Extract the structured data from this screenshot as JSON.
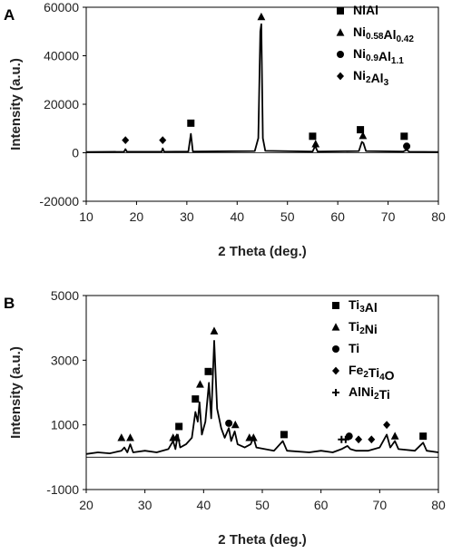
{
  "chart_data": [
    {
      "type": "line",
      "panel_label": "A",
      "xlabel": "2 Theta (deg.)",
      "ylabel": "Intensity (a.u.)",
      "xlim": [
        10,
        80
      ],
      "ylim": [
        -20000,
        60000
      ],
      "x_ticks": [
        10,
        20,
        30,
        40,
        50,
        60,
        70,
        80
      ],
      "y_ticks": [
        -20000,
        0,
        20000,
        40000,
        60000
      ],
      "legend_position": "top-right",
      "legend": [
        {
          "marker": "square",
          "label": "NiAl"
        },
        {
          "marker": "triangle",
          "label": "Ni",
          "sub1": "0.58",
          "mid": "Al",
          "sub2": "0.42"
        },
        {
          "marker": "circle",
          "label": "Ni",
          "sub1": "0.9",
          "mid": "Al",
          "sub2": "1.1"
        },
        {
          "marker": "diamond",
          "label": "Ni",
          "sub1": "2",
          "mid": "Al",
          "sub2": "3"
        }
      ],
      "series": [
        {
          "values": [
            [
              10,
              300
            ],
            [
              17.5,
              400
            ],
            [
              17.8,
              1500
            ],
            [
              18.1,
              400
            ],
            [
              25,
              400
            ],
            [
              25.2,
              1800
            ],
            [
              25.5,
              400
            ],
            [
              30.3,
              500
            ],
            [
              30.8,
              7800
            ],
            [
              31.2,
              500
            ],
            [
              43.5,
              700
            ],
            [
              44.2,
              6000
            ],
            [
              44.6,
              50000
            ],
            [
              44.8,
              53000
            ],
            [
              45.1,
              6000
            ],
            [
              45.6,
              800
            ],
            [
              55,
              500
            ],
            [
              55.5,
              2800
            ],
            [
              56,
              500
            ],
            [
              64.2,
              700
            ],
            [
              64.8,
              4500
            ],
            [
              65.1,
              4000
            ],
            [
              65.6,
              700
            ],
            [
              73,
              500
            ],
            [
              73.7,
              1200
            ],
            [
              74.2,
              400
            ],
            [
              80,
              300
            ]
          ]
        }
      ],
      "markers": [
        {
          "type": "diamond",
          "x": 17.8,
          "y": 5200
        },
        {
          "type": "diamond",
          "x": 25.2,
          "y": 5200
        },
        {
          "type": "square",
          "x": 30.8,
          "y": 12200
        },
        {
          "type": "triangle",
          "x": 44.8,
          "y": 56000
        },
        {
          "type": "square",
          "x": 55.0,
          "y": 6800
        },
        {
          "type": "triangle",
          "x": 55.6,
          "y": 3600
        },
        {
          "type": "square",
          "x": 64.5,
          "y": 9500
        },
        {
          "type": "triangle",
          "x": 65.0,
          "y": 7000
        },
        {
          "type": "square",
          "x": 73.2,
          "y": 6800
        },
        {
          "type": "circle",
          "x": 73.7,
          "y": 2700
        }
      ]
    },
    {
      "type": "line",
      "panel_label": "B",
      "xlabel": "2 Theta (deg.)",
      "ylabel": "Intensity (a.u.)",
      "xlim": [
        20,
        80
      ],
      "ylim": [
        -1000,
        5000
      ],
      "x_ticks": [
        20,
        30,
        40,
        50,
        60,
        70,
        80
      ],
      "y_ticks": [
        -1000,
        1000,
        3000,
        5000
      ],
      "legend_position": "top-right",
      "legend": [
        {
          "marker": "square",
          "label": "Ti",
          "sub1": "3",
          "mid": "Al",
          "sub2": ""
        },
        {
          "marker": "triangle",
          "label": "Ti",
          "sub1": "2",
          "mid": "Ni",
          "sub2": ""
        },
        {
          "marker": "circle",
          "label": "Ti",
          "sub1": "",
          "mid": "",
          "sub2": ""
        },
        {
          "marker": "diamond",
          "label": "Fe",
          "sub1": "2",
          "mid": "Ti",
          "sub2": "4",
          "tail": "O"
        },
        {
          "marker": "plus",
          "label": "AlNi",
          "sub1": "2",
          "mid": "Ti",
          "sub2": ""
        }
      ],
      "series": [
        {
          "values": [
            [
              20,
              100
            ],
            [
              22,
              150
            ],
            [
              24,
              120
            ],
            [
              26,
              200
            ],
            [
              26.5,
              300
            ],
            [
              27,
              150
            ],
            [
              27.5,
              400
            ],
            [
              28,
              150
            ],
            [
              30,
              200
            ],
            [
              32,
              150
            ],
            [
              34,
              250
            ],
            [
              34.8,
              500
            ],
            [
              35.2,
              250
            ],
            [
              35.6,
              700
            ],
            [
              36,
              300
            ],
            [
              37,
              400
            ],
            [
              38,
              600
            ],
            [
              38.6,
              1400
            ],
            [
              39,
              1100
            ],
            [
              39.3,
              1700
            ],
            [
              39.7,
              700
            ],
            [
              40.3,
              1100
            ],
            [
              40.9,
              2300
            ],
            [
              41.3,
              1200
            ],
            [
              41.8,
              3600
            ],
            [
              42.3,
              1500
            ],
            [
              43,
              900
            ],
            [
              43.6,
              600
            ],
            [
              44.3,
              900
            ],
            [
              44.7,
              500
            ],
            [
              45.3,
              800
            ],
            [
              45.8,
              400
            ],
            [
              47,
              300
            ],
            [
              48,
              400
            ],
            [
              48.5,
              600
            ],
            [
              49,
              300
            ],
            [
              52,
              200
            ],
            [
              53.5,
              500
            ],
            [
              54.2,
              200
            ],
            [
              58,
              150
            ],
            [
              60,
              200
            ],
            [
              62,
              150
            ],
            [
              63.5,
              250
            ],
            [
              64.5,
              350
            ],
            [
              65,
              250
            ],
            [
              66,
              200
            ],
            [
              68,
              200
            ],
            [
              70,
              300
            ],
            [
              71.2,
              700
            ],
            [
              71.8,
              300
            ],
            [
              72.6,
              500
            ],
            [
              73.2,
              250
            ],
            [
              76,
              200
            ],
            [
              77.4,
              450
            ],
            [
              78,
              200
            ],
            [
              80,
              150
            ]
          ]
        }
      ],
      "markers": [
        {
          "type": "triangle",
          "x": 26.0,
          "y": 600
        },
        {
          "type": "triangle",
          "x": 27.5,
          "y": 600
        },
        {
          "type": "triangle",
          "x": 34.8,
          "y": 600
        },
        {
          "type": "square",
          "x": 35.8,
          "y": 950
        },
        {
          "type": "triangle",
          "x": 35.4,
          "y": 600
        },
        {
          "type": "square",
          "x": 38.6,
          "y": 1800
        },
        {
          "type": "triangle",
          "x": 39.4,
          "y": 2250
        },
        {
          "type": "square",
          "x": 40.8,
          "y": 2650
        },
        {
          "type": "triangle",
          "x": 41.8,
          "y": 3900
        },
        {
          "type": "circle",
          "x": 44.3,
          "y": 1050
        },
        {
          "type": "triangle",
          "x": 45.4,
          "y": 1000
        },
        {
          "type": "triangle",
          "x": 47.8,
          "y": 600
        },
        {
          "type": "triangle",
          "x": 48.5,
          "y": 600
        },
        {
          "type": "square",
          "x": 53.7,
          "y": 700
        },
        {
          "type": "plus",
          "x": 63.5,
          "y": 550
        },
        {
          "type": "plus",
          "x": 64.2,
          "y": 550
        },
        {
          "type": "circle",
          "x": 64.8,
          "y": 650
        },
        {
          "type": "diamond",
          "x": 66.4,
          "y": 550
        },
        {
          "type": "diamond",
          "x": 68.6,
          "y": 550
        },
        {
          "type": "diamond",
          "x": 71.2,
          "y": 1000
        },
        {
          "type": "triangle",
          "x": 72.6,
          "y": 650
        },
        {
          "type": "square",
          "x": 77.4,
          "y": 650
        }
      ]
    }
  ]
}
